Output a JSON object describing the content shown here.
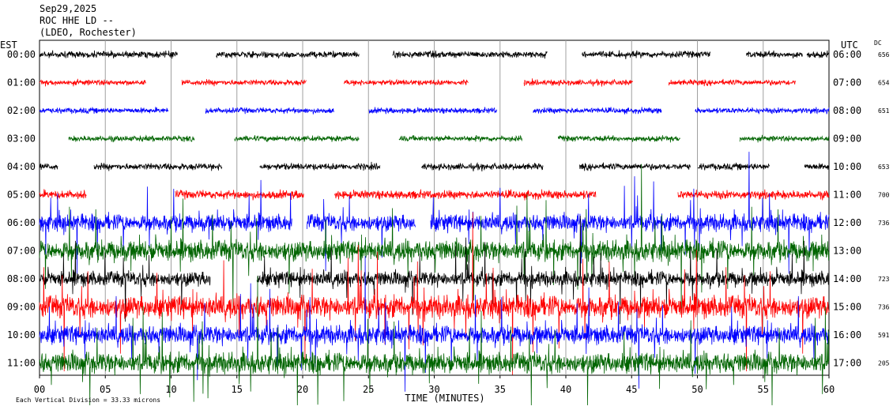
{
  "header": {
    "date": "Sep29,2025",
    "station": "ROC HHE LD --",
    "network": "(LDEO, Rochester)"
  },
  "chart_data": {
    "type": "line",
    "subtype": "helicorder",
    "left_axis_label": "EST",
    "right_axis_label": "UTC",
    "dc_label": "DC",
    "xlabel": "TIME (MINUTES)",
    "x_range": [
      0,
      60
    ],
    "x_ticks": [
      0,
      5,
      10,
      15,
      20,
      25,
      30,
      35,
      40,
      45,
      50,
      55,
      60
    ],
    "x_tick_labels": [
      "00",
      "05",
      "10",
      "15",
      "20",
      "25",
      "30",
      "35",
      "40",
      "45",
      "50",
      "55",
      "60"
    ],
    "scale_note": "Each Vertical Division = 33.33 microns",
    "grid": "vertical lines every 5 minutes",
    "trace_colors": [
      "#000000",
      "#ff0000",
      "#0000ff",
      "#006400"
    ],
    "rows": [
      {
        "est": "00:00",
        "utc": "06:00",
        "dc": "656",
        "color": "#000000",
        "level": 0.35,
        "gaps": [
          [
            10.5,
            13.4
          ],
          [
            24.3,
            26.8
          ],
          [
            38.6,
            41.2
          ],
          [
            51.0,
            53.7
          ],
          [
            58.0,
            58.3
          ]
        ]
      },
      {
        "est": "01:00",
        "utc": "07:00",
        "dc": "654",
        "color": "#ff0000",
        "level": 0.3,
        "gaps": [
          [
            8.1,
            10.8
          ],
          [
            20.3,
            23.1
          ],
          [
            32.6,
            36.8
          ],
          [
            45.1,
            47.8
          ],
          [
            57.5,
            60.0
          ]
        ]
      },
      {
        "est": "02:00",
        "utc": "08:00",
        "dc": "651",
        "color": "#0000ff",
        "level": 0.3,
        "gaps": [
          [
            9.8,
            12.6
          ],
          [
            22.4,
            25.0
          ],
          [
            34.8,
            37.5
          ],
          [
            47.3,
            49.8
          ]
        ]
      },
      {
        "est": "03:00",
        "utc": "09:00",
        "dc": "---",
        "color": "#006400",
        "level": 0.3,
        "gaps": [
          [
            0.0,
            2.2
          ],
          [
            11.8,
            14.8
          ],
          [
            24.3,
            27.3
          ],
          [
            36.7,
            39.4
          ],
          [
            48.7,
            53.2
          ]
        ]
      },
      {
        "est": "04:00",
        "utc": "10:00",
        "dc": "653",
        "color": "#000000",
        "level": 0.35,
        "gaps": [
          [
            1.4,
            4.1
          ],
          [
            13.9,
            16.7
          ],
          [
            25.9,
            29.0
          ],
          [
            38.3,
            41.0
          ],
          [
            49.5,
            50.0
          ],
          [
            55.5,
            58.1
          ]
        ]
      },
      {
        "est": "05:00",
        "utc": "11:00",
        "dc": "700",
        "color": "#ff0000",
        "level": 0.45,
        "gaps": [
          [
            3.6,
            10.3
          ],
          [
            20.1,
            22.4
          ],
          [
            42.3,
            48.5
          ]
        ]
      },
      {
        "est": "06:00",
        "utc": "12:00",
        "dc": "736",
        "color": "#0000ff",
        "level": 0.9,
        "gaps": [
          [
            19.2,
            20.3
          ],
          [
            28.6,
            29.7
          ]
        ]
      },
      {
        "est": "07:00",
        "utc": "13:00",
        "dc": "---",
        "color": "#006400",
        "level": 1.1,
        "gaps": []
      },
      {
        "est": "08:00",
        "utc": "14:00",
        "dc": "723",
        "color": "#000000",
        "level": 0.8,
        "gaps": [
          [
            13.0,
            16.5
          ]
        ]
      },
      {
        "est": "09:00",
        "utc": "15:00",
        "dc": "736",
        "color": "#ff0000",
        "level": 1.2,
        "gaps": []
      },
      {
        "est": "10:00",
        "utc": "16:00",
        "dc": "591",
        "color": "#0000ff",
        "level": 1.0,
        "gaps": []
      },
      {
        "est": "11:00",
        "utc": "17:00",
        "dc": "205",
        "color": "#006400",
        "level": 1.1,
        "gaps": []
      }
    ]
  }
}
